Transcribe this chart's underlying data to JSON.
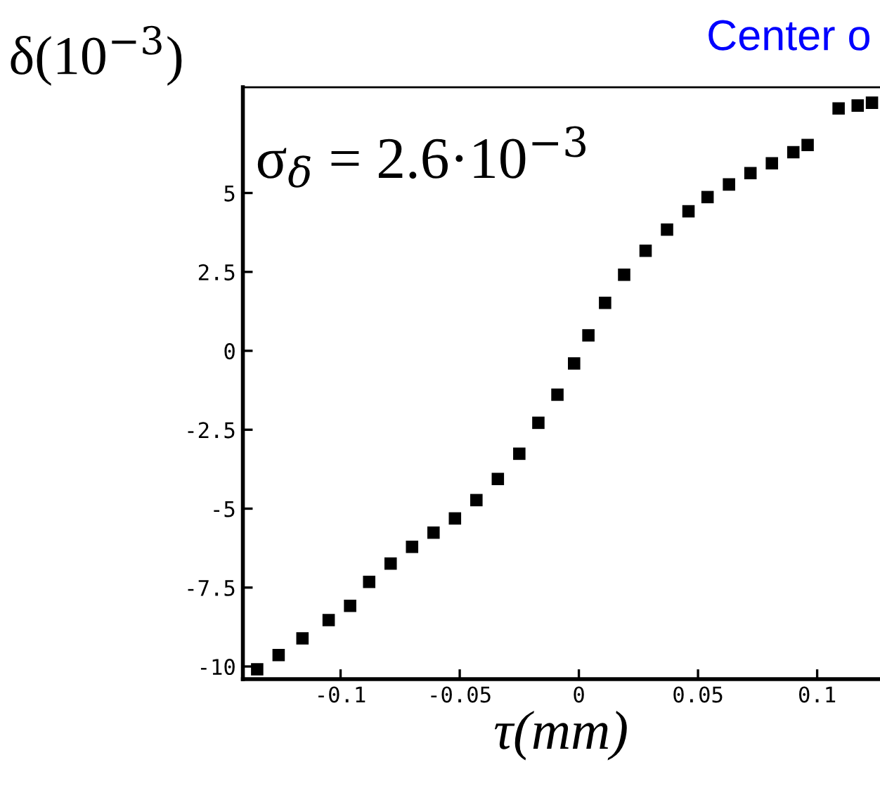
{
  "chart_data": {
    "type": "scatter",
    "title": "Center o",
    "xlabel": "τ(mm)",
    "ylabel": "δ(10$^{−3}$)",
    "annotations": [
      "σ$_{δ}$ = 2.6·10$^{−3}$"
    ],
    "marker": "square",
    "grid": false,
    "legend": false,
    "xlim": [
      -0.141,
      0.126
    ],
    "ylim": [
      -10.4,
      8.35
    ],
    "xticks": [
      -0.1,
      -0.05,
      0,
      0.05,
      0.1
    ],
    "yticks": [
      -10,
      -7.5,
      -5,
      -2.5,
      0,
      2.5,
      5
    ],
    "series": [
      {
        "color": "#000000",
        "x": [
          -0.135,
          -0.126,
          -0.116,
          -0.105,
          -0.096,
          -0.088,
          -0.079,
          -0.07,
          -0.061,
          -0.052,
          -0.043,
          -0.034,
          -0.025,
          -0.017,
          -0.009,
          -0.002,
          0.004,
          0.011,
          0.019,
          0.028,
          0.037,
          0.046,
          0.054,
          0.063,
          0.072,
          0.081,
          0.09,
          0.096,
          0.109,
          0.117,
          0.123
        ],
        "values": [
          -10.09,
          -9.64,
          -9.11,
          -8.53,
          -8.08,
          -7.32,
          -6.74,
          -6.21,
          -5.76,
          -5.31,
          -4.73,
          -4.06,
          -3.26,
          -2.28,
          -1.39,
          -0.4,
          0.49,
          1.52,
          2.41,
          3.17,
          3.84,
          4.42,
          4.87,
          5.27,
          5.63,
          5.94,
          6.29,
          6.52,
          7.68,
          7.77,
          7.86
        ]
      }
    ]
  }
}
